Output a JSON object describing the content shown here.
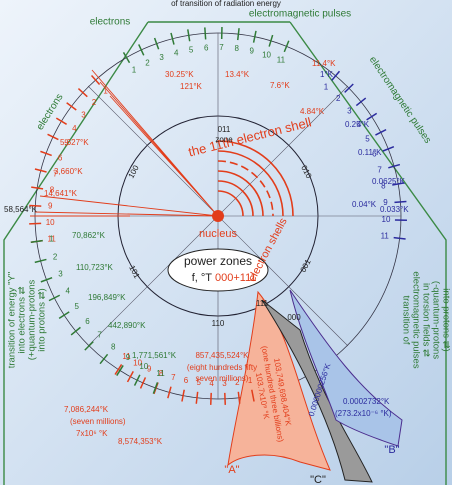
{
  "header": "of transition of radiation energy",
  "sides": {
    "top_left": "electrons",
    "top_right": "electromagnetic pulses",
    "diag_left": "electrons",
    "diag_right": "electromagnetic pulses"
  },
  "temperatures": {
    "t30": "30.25°K",
    "t13": "13.4°K",
    "t7": "7.6°K",
    "t4": "4.84°K",
    "t121": "121°K",
    "t11": "11.4°K",
    "t1": "1°K",
    "t025": "0.25°K",
    "t011": "0.11°K",
    "t00625": "0.0625°K",
    "t004": "0.04°K",
    "t0033": "0.033°K",
    "t14641": "14,641°K",
    "t5627": "5,627°K",
    "t3660": "3,660°K",
    "t58564": "58,564°K",
    "t70862": "70,862°K",
    "t110723": "110,723°K",
    "t196849": "196,849°K",
    "t442890": "442,890°K",
    "t1771561": "1,771,561°K",
    "t7086244": "7,086,244°K",
    "seven": "(seven millions)",
    "t7x": "7x10⁶ °K",
    "t8574353": "8,574,353°K",
    "t857": "857,435,524°K",
    "eight1": "(eight hundreds fifty",
    "eight2": "seven millions)",
    "t103": "103,749,698,404°K",
    "billions": "(one hundred three billions)",
    "t103x": "103.7x10⁹ °K",
    "t256": "0.000000256°K",
    "t2732": "0.0002732°K",
    "t2732b": "(273.2x10⁻⁶ °K)"
  },
  "shell": {
    "eleventh": "the 11th electron shell",
    "shells": "electron shells",
    "nucleus": "nucleus"
  },
  "zones": {
    "z011": "011",
    "z010": "010",
    "z100": "100",
    "z001": "001",
    "z101": "101",
    "z110": "110",
    "z111": "111",
    "z000": "000",
    "word": "zone"
  },
  "power": {
    "title": "power zones",
    "f": "f, °T",
    "range": "000+111"
  },
  "left_text": [
    "transition of energy \"Y\"",
    "into electrons ⇄",
    "(+quantum-protons",
    "into protons ⇄)"
  ],
  "right_text": [
    "transition of",
    "electromagnetic pulses",
    "in torsion fields ⇄",
    "(-quantum-protons",
    "into protons ⇄)"
  ],
  "shapes": {
    "a": "\"A\"",
    "b": "\"B\"",
    "c": "\"C\""
  },
  "scales": {
    "top": [
      1,
      2,
      3,
      4,
      5,
      6,
      7,
      8,
      9,
      10,
      11
    ],
    "right": [
      1,
      2,
      3,
      4,
      5,
      6,
      7,
      8,
      9,
      10,
      11
    ],
    "bottom": [
      1,
      2,
      3,
      4,
      5,
      6,
      7,
      8,
      9,
      10,
      11
    ],
    "left_upper": [
      1,
      2,
      3,
      4,
      5,
      6,
      7,
      8,
      9,
      10,
      11
    ],
    "left_lower": [
      1,
      2,
      3,
      4,
      5,
      6,
      7,
      8,
      9,
      10,
      11
    ]
  }
}
